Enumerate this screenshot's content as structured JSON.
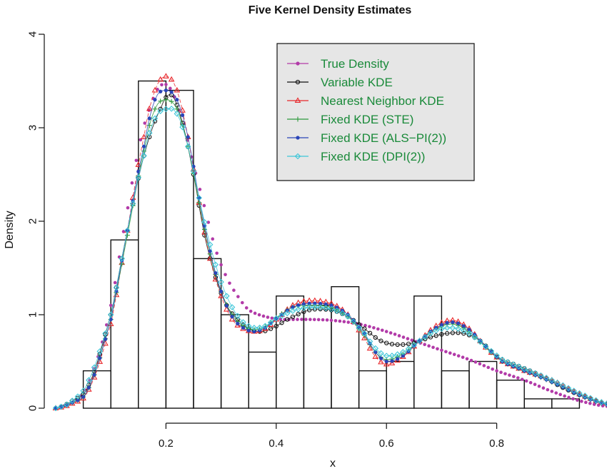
{
  "chart_data": {
    "type": "line",
    "title": "Five Kernel Density Estimates",
    "xlabel": "x",
    "ylabel": "Density",
    "xlim": [
      0,
      1
    ],
    "ylim": [
      0,
      4
    ],
    "x_ticks": [
      0.2,
      0.4,
      0.6,
      0.8
    ],
    "x_tick_labels": [
      "0.2",
      "0.4",
      "0.6",
      "0.8"
    ],
    "y_ticks": [
      0,
      1,
      2,
      3,
      4
    ],
    "y_tick_labels": [
      "0",
      "1",
      "2",
      "3",
      "4"
    ],
    "legend_position": "top-right",
    "legend_background": "#e6e6e6",
    "legend_text_color": "#1a8a3a",
    "histogram": {
      "breaks": [
        0.05,
        0.1,
        0.15,
        0.2,
        0.25,
        0.3,
        0.35,
        0.4,
        0.45,
        0.5,
        0.55,
        0.6,
        0.65,
        0.7,
        0.75,
        0.8,
        0.85,
        0.9,
        0.95
      ],
      "heights": [
        0.4,
        1.8,
        3.5,
        3.4,
        1.6,
        1.0,
        0.6,
        1.2,
        1.1,
        1.3,
        0.4,
        0.5,
        1.2,
        0.4,
        0.5,
        0.3,
        0.1,
        0.1
      ]
    },
    "series": [
      {
        "name": "True Density",
        "color": "#b23aa8",
        "marker": "dot",
        "x": [
          0.0,
          0.05,
          0.08,
          0.1,
          0.12,
          0.15,
          0.17,
          0.19,
          0.21,
          0.23,
          0.25,
          0.27,
          0.29,
          0.31,
          0.33,
          0.35,
          0.38,
          0.41,
          0.45,
          0.5,
          0.55,
          0.6,
          0.65,
          0.7,
          0.75,
          0.8,
          0.85,
          0.9,
          0.95,
          1.0
        ],
        "y": [
          0.0,
          0.15,
          0.6,
          1.1,
          1.8,
          2.75,
          3.2,
          3.45,
          3.4,
          3.05,
          2.6,
          2.15,
          1.7,
          1.4,
          1.2,
          1.05,
          0.98,
          0.95,
          0.95,
          0.94,
          0.9,
          0.82,
          0.72,
          0.62,
          0.52,
          0.4,
          0.3,
          0.18,
          0.08,
          0.02
        ]
      },
      {
        "name": "Variable KDE",
        "color": "#111111",
        "marker": "circle",
        "x": [
          0.0,
          0.03,
          0.06,
          0.1,
          0.13,
          0.16,
          0.19,
          0.21,
          0.23,
          0.25,
          0.27,
          0.29,
          0.31,
          0.33,
          0.35,
          0.37,
          0.39,
          0.42,
          0.46,
          0.5,
          0.53,
          0.56,
          0.59,
          0.62,
          0.65,
          0.68,
          0.71,
          0.74,
          0.77,
          0.8,
          0.84,
          0.88,
          0.92,
          0.96,
          1.0
        ],
        "y": [
          0.0,
          0.08,
          0.25,
          1.0,
          1.9,
          2.7,
          3.2,
          3.35,
          3.05,
          2.5,
          1.85,
          1.4,
          1.1,
          0.95,
          0.85,
          0.82,
          0.85,
          0.95,
          1.05,
          1.05,
          0.98,
          0.85,
          0.72,
          0.68,
          0.7,
          0.76,
          0.8,
          0.8,
          0.72,
          0.55,
          0.45,
          0.35,
          0.22,
          0.12,
          0.05
        ]
      },
      {
        "name": "Nearest Neighbor KDE",
        "color": "#e8262a",
        "marker": "triangle",
        "x": [
          0.0,
          0.03,
          0.06,
          0.1,
          0.13,
          0.16,
          0.18,
          0.2,
          0.22,
          0.24,
          0.26,
          0.28,
          0.3,
          0.32,
          0.34,
          0.36,
          0.38,
          0.4,
          0.43,
          0.46,
          0.5,
          0.53,
          0.56,
          0.58,
          0.6,
          0.63,
          0.66,
          0.69,
          0.72,
          0.75,
          0.78,
          0.81,
          0.85,
          0.9,
          0.95,
          1.0
        ],
        "y": [
          0.0,
          0.05,
          0.2,
          0.9,
          1.9,
          2.9,
          3.4,
          3.55,
          3.4,
          2.9,
          2.2,
          1.6,
          1.2,
          0.95,
          0.85,
          0.82,
          0.85,
          0.95,
          1.1,
          1.15,
          1.12,
          1.0,
          0.75,
          0.55,
          0.47,
          0.55,
          0.72,
          0.88,
          0.94,
          0.85,
          0.65,
          0.5,
          0.4,
          0.3,
          0.15,
          0.05
        ]
      },
      {
        "name": "Fixed KDE (STE)",
        "color": "#2e9a3c",
        "marker": "plus",
        "x": [
          0.0,
          0.03,
          0.06,
          0.1,
          0.13,
          0.16,
          0.18,
          0.2,
          0.22,
          0.24,
          0.26,
          0.28,
          0.3,
          0.32,
          0.34,
          0.36,
          0.38,
          0.4,
          0.43,
          0.46,
          0.5,
          0.53,
          0.56,
          0.58,
          0.6,
          0.63,
          0.66,
          0.69,
          0.72,
          0.75,
          0.78,
          0.81,
          0.85,
          0.9,
          0.95,
          1.0
        ],
        "y": [
          0.0,
          0.06,
          0.22,
          0.95,
          1.85,
          2.75,
          3.2,
          3.3,
          3.2,
          2.8,
          2.2,
          1.65,
          1.25,
          1.0,
          0.88,
          0.84,
          0.87,
          0.97,
          1.08,
          1.1,
          1.08,
          0.98,
          0.78,
          0.6,
          0.52,
          0.58,
          0.72,
          0.85,
          0.9,
          0.82,
          0.65,
          0.5,
          0.4,
          0.28,
          0.14,
          0.04
        ]
      },
      {
        "name": "Fixed KDE (ALS−PI(2))",
        "color": "#2a45b8",
        "marker": "filled-dot",
        "x": [
          0.0,
          0.03,
          0.06,
          0.1,
          0.13,
          0.16,
          0.18,
          0.2,
          0.22,
          0.24,
          0.26,
          0.28,
          0.3,
          0.32,
          0.34,
          0.36,
          0.38,
          0.4,
          0.43,
          0.46,
          0.5,
          0.53,
          0.56,
          0.58,
          0.6,
          0.63,
          0.66,
          0.69,
          0.72,
          0.75,
          0.78,
          0.81,
          0.85,
          0.9,
          0.95,
          1.0
        ],
        "y": [
          0.0,
          0.06,
          0.22,
          0.95,
          1.9,
          2.8,
          3.3,
          3.4,
          3.3,
          2.9,
          2.25,
          1.68,
          1.25,
          0.98,
          0.86,
          0.82,
          0.86,
          0.96,
          1.08,
          1.12,
          1.1,
          1.0,
          0.8,
          0.6,
          0.5,
          0.56,
          0.72,
          0.86,
          0.92,
          0.84,
          0.66,
          0.5,
          0.4,
          0.28,
          0.14,
          0.04
        ]
      },
      {
        "name": "Fixed KDE (DPI(2))",
        "color": "#3cc6d8",
        "marker": "diamond",
        "x": [
          0.0,
          0.03,
          0.06,
          0.1,
          0.13,
          0.16,
          0.18,
          0.2,
          0.22,
          0.24,
          0.26,
          0.28,
          0.3,
          0.32,
          0.34,
          0.36,
          0.38,
          0.4,
          0.43,
          0.46,
          0.5,
          0.53,
          0.56,
          0.58,
          0.6,
          0.63,
          0.66,
          0.69,
          0.72,
          0.75,
          0.78,
          0.81,
          0.85,
          0.9,
          0.95,
          1.0
        ],
        "y": [
          0.0,
          0.08,
          0.3,
          1.0,
          1.9,
          2.7,
          3.1,
          3.2,
          3.15,
          2.8,
          2.25,
          1.75,
          1.35,
          1.08,
          0.92,
          0.86,
          0.88,
          0.96,
          1.04,
          1.08,
          1.06,
          0.98,
          0.8,
          0.64,
          0.56,
          0.6,
          0.72,
          0.83,
          0.86,
          0.8,
          0.66,
          0.52,
          0.42,
          0.3,
          0.16,
          0.05
        ]
      }
    ]
  }
}
